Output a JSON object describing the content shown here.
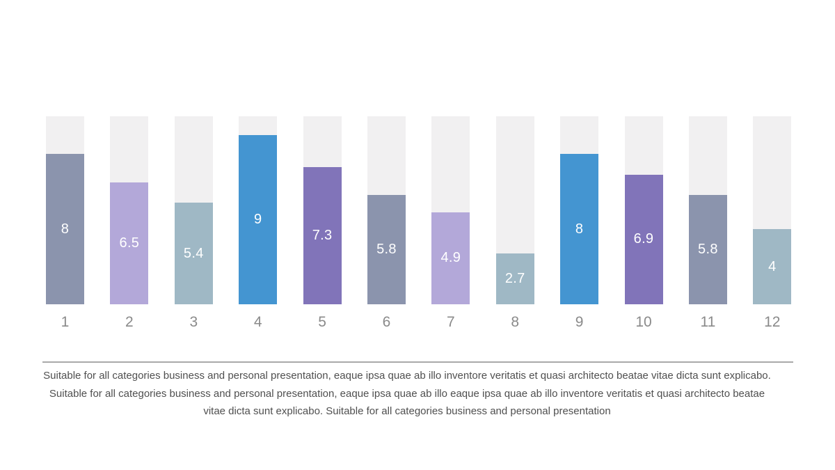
{
  "slide": {
    "background": "#ffffff"
  },
  "chart_data": {
    "type": "bar",
    "title": "",
    "xlabel": "",
    "ylabel": "",
    "categories": [
      "1",
      "2",
      "3",
      "4",
      "5",
      "6",
      "7",
      "8",
      "9",
      "10",
      "11",
      "12"
    ],
    "values": [
      8,
      6.5,
      5.4,
      9,
      7.3,
      5.8,
      4.9,
      2.7,
      8,
      6.9,
      5.8,
      4
    ],
    "data_labels": [
      "8",
      "6.5",
      "5.4",
      "9",
      "7.3",
      "5.8",
      "4.9",
      "2.7",
      "8",
      "6.9",
      "5.8",
      "4"
    ],
    "ylim": [
      0,
      10
    ],
    "grid": false,
    "legend": "none",
    "bar_colors": [
      "#8b94ad",
      "#b3a8d9",
      "#9fb8c5",
      "#4495d1",
      "#8174b9",
      "#8b94ad",
      "#b3a8d9",
      "#9fb8c5",
      "#4495d1",
      "#8174b9",
      "#8b94ad",
      "#9fb8c5"
    ],
    "track_color": "#f1f0f1",
    "value_label_color": "#ffffff",
    "category_label_color": "#8a8a8a"
  },
  "footer": {
    "divider_color": "#a9a9a9",
    "lines": [
      "Suitable for all categories business and personal presentation, eaque ipsa quae ab illo inventore veritatis et quasi architecto beatae vitae dicta sunt explicabo.",
      "Suitable for all categories business and personal presentation, eaque ipsa quae ab illo eaque ipsa quae ab illo inventore veritatis et quasi architecto beatae",
      "vitae dicta sunt explicabo. Suitable for all categories business and personal presentation"
    ]
  }
}
